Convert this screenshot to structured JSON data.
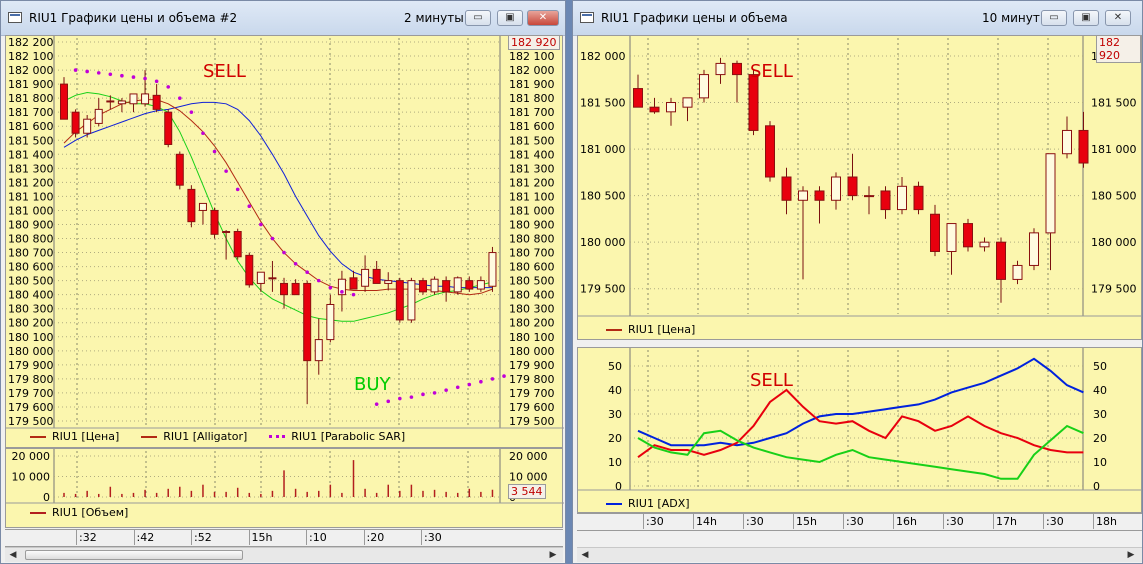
{
  "colors": {
    "pane_bg": "#fbf6ae",
    "bull": "#fffbe0",
    "bear": "#e8000e",
    "sma_red": "#b22a14",
    "sma_green": "#18d018",
    "sma_blue": "#1020d8",
    "sar": "#c000d8",
    "sell": "#d00000",
    "buy": "#00cc00",
    "volume": "#b21e1e",
    "adx": "#0022dd"
  },
  "left": {
    "title": "RIU1 Графики цены и объема #2",
    "period": "2 минуты",
    "buttons": {
      "minimize": "▭",
      "maximize": "▣",
      "close": "✕"
    },
    "price_axis_labels": [
      "182 200",
      "182 100",
      "182 000",
      "181 900",
      "181 800",
      "181 700",
      "181 600",
      "181 500",
      "181 400",
      "181 300",
      "181 200",
      "181 100",
      "181 000",
      "180 900",
      "180 800",
      "180 700",
      "180 600",
      "180 500",
      "180 400",
      "180 300",
      "180 200",
      "180 100",
      "180 000",
      "179 900",
      "179 800",
      "179 700",
      "179 600",
      "179 500"
    ],
    "last_price": "182 920",
    "sell_label": "SELL",
    "buy_label": "BUY",
    "legend": [
      "RIU1 [Цена]",
      "RIU1 [Alligator]",
      "RIU1 [Parabolic SAR]"
    ],
    "volume_axis_labels": [
      "20 000",
      "10 000",
      "0"
    ],
    "volume_last": "3 544",
    "volume_legend": "RIU1 [Объем]",
    "time_labels": [
      ":32",
      ":42",
      ":52",
      "15h",
      ":10",
      ":20",
      ":30"
    ],
    "chart_data": {
      "type": "candlestick",
      "ylim": [
        179500,
        182200
      ],
      "candles": [
        {
          "o": 181900,
          "h": 181950,
          "l": 181650,
          "c": 181650
        },
        {
          "o": 181700,
          "h": 181720,
          "l": 181520,
          "c": 181550
        },
        {
          "o": 181550,
          "h": 181680,
          "l": 181520,
          "c": 181650
        },
        {
          "o": 181620,
          "h": 181800,
          "l": 181600,
          "c": 181720
        },
        {
          "o": 181780,
          "h": 181820,
          "l": 181720,
          "c": 181780
        },
        {
          "o": 181760,
          "h": 181800,
          "l": 181700,
          "c": 181780
        },
        {
          "o": 181760,
          "h": 181800,
          "l": 181700,
          "c": 181830
        },
        {
          "o": 181760,
          "h": 182000,
          "l": 181740,
          "c": 181830
        },
        {
          "o": 181820,
          "h": 181900,
          "l": 181700,
          "c": 181720
        },
        {
          "o": 181700,
          "h": 181720,
          "l": 181450,
          "c": 181470
        },
        {
          "o": 181400,
          "h": 181420,
          "l": 181150,
          "c": 181180
        },
        {
          "o": 181150,
          "h": 181180,
          "l": 180880,
          "c": 180920
        },
        {
          "o": 181000,
          "h": 181050,
          "l": 180900,
          "c": 181050
        },
        {
          "o": 181000,
          "h": 181020,
          "l": 180800,
          "c": 180830
        },
        {
          "o": 180850,
          "h": 180860,
          "l": 180650,
          "c": 180850
        },
        {
          "o": 180850,
          "h": 180870,
          "l": 180650,
          "c": 180670
        },
        {
          "o": 180680,
          "h": 180700,
          "l": 180450,
          "c": 180470
        },
        {
          "o": 180480,
          "h": 180560,
          "l": 180420,
          "c": 180560
        },
        {
          "o": 180520,
          "h": 180640,
          "l": 180420,
          "c": 180520
        },
        {
          "o": 180480,
          "h": 180520,
          "l": 180300,
          "c": 180400
        },
        {
          "o": 180480,
          "h": 180510,
          "l": 180440,
          "c": 180400
        },
        {
          "o": 180480,
          "h": 180500,
          "l": 179620,
          "c": 179930
        },
        {
          "o": 179930,
          "h": 180230,
          "l": 179830,
          "c": 180080
        },
        {
          "o": 180080,
          "h": 180400,
          "l": 180060,
          "c": 180330
        },
        {
          "o": 180400,
          "h": 180570,
          "l": 180280,
          "c": 180510
        },
        {
          "o": 180520,
          "h": 180570,
          "l": 180440,
          "c": 180440
        },
        {
          "o": 180460,
          "h": 180680,
          "l": 180420,
          "c": 180580
        },
        {
          "o": 180580,
          "h": 180640,
          "l": 180480,
          "c": 180480
        },
        {
          "o": 180480,
          "h": 180560,
          "l": 180430,
          "c": 180500
        },
        {
          "o": 180500,
          "h": 180520,
          "l": 180200,
          "c": 180220
        },
        {
          "o": 180220,
          "h": 180520,
          "l": 180200,
          "c": 180500
        },
        {
          "o": 180500,
          "h": 180520,
          "l": 180400,
          "c": 180420
        },
        {
          "o": 180420,
          "h": 180530,
          "l": 180400,
          "c": 180510
        },
        {
          "o": 180500,
          "h": 180530,
          "l": 180350,
          "c": 180420
        },
        {
          "o": 180420,
          "h": 180530,
          "l": 180400,
          "c": 180520
        },
        {
          "o": 180500,
          "h": 180530,
          "l": 180420,
          "c": 180440
        },
        {
          "o": 180440,
          "h": 180530,
          "l": 180420,
          "c": 180500
        },
        {
          "o": 180460,
          "h": 180740,
          "l": 180420,
          "c": 180700
        }
      ],
      "alligator_red": [
        181480,
        181560,
        181620,
        181680,
        181720,
        181760,
        181780,
        181790,
        181790,
        181760,
        181710,
        181640,
        181560,
        181460,
        181340,
        181200,
        181060,
        180920,
        180800,
        180700,
        180620,
        180560,
        180500,
        180460,
        180440,
        180430,
        180430,
        180430,
        180440,
        180440,
        180440,
        180440,
        180430,
        180420,
        180410,
        180400,
        180410,
        180440
      ],
      "alligator_green": [
        181780,
        181820,
        181840,
        181830,
        181810,
        181780,
        181760,
        181760,
        181740,
        181700,
        181560,
        181380,
        181180,
        180980,
        180800,
        180640,
        180520,
        180430,
        180370,
        180330,
        180290,
        180250,
        180230,
        180220,
        180210,
        180210,
        180230,
        180250,
        180270,
        180300,
        180330,
        180370,
        180400,
        180420,
        180430,
        180450,
        180470,
        180490
      ],
      "alligator_blue": [
        181450,
        181500,
        181540,
        181570,
        181600,
        181630,
        181660,
        181690,
        181710,
        181720,
        181740,
        181760,
        181770,
        181770,
        181760,
        181720,
        181640,
        181530,
        181400,
        181260,
        181100,
        180960,
        180820,
        180710,
        180620,
        180560,
        180530,
        180510,
        180500,
        180490,
        180480,
        180470,
        180460,
        180460,
        180450,
        180450,
        180450,
        180450
      ],
      "sar": [
        [
          1,
          182000
        ],
        [
          2,
          181990
        ],
        [
          3,
          181980
        ],
        [
          4,
          181970
        ],
        [
          5,
          181960
        ],
        [
          6,
          181950
        ],
        [
          7,
          181940
        ],
        [
          8,
          181920
        ],
        [
          9,
          181880
        ],
        [
          10,
          181800
        ],
        [
          11,
          181700
        ],
        [
          12,
          181550
        ],
        [
          13,
          181420
        ],
        [
          14,
          181280
        ],
        [
          15,
          181150
        ],
        [
          16,
          181030
        ],
        [
          17,
          180900
        ],
        [
          18,
          180800
        ],
        [
          19,
          180700
        ],
        [
          20,
          180620
        ],
        [
          21,
          180560
        ],
        [
          22,
          180500
        ],
        [
          23,
          180450
        ],
        [
          24,
          180420
        ],
        [
          25,
          180400
        ],
        [
          27,
          179620
        ],
        [
          28,
          179640
        ],
        [
          29,
          179660
        ],
        [
          30,
          179670
        ],
        [
          31,
          179690
        ],
        [
          32,
          179700
        ],
        [
          33,
          179720
        ],
        [
          34,
          179740
        ],
        [
          35,
          179760
        ],
        [
          36,
          179780
        ],
        [
          37,
          179800
        ],
        [
          38,
          179820
        ]
      ],
      "volume": [
        2000,
        1500,
        3000,
        1500,
        5000,
        1500,
        2000,
        3500,
        2000,
        4000,
        5000,
        3000,
        6000,
        2500,
        2500,
        4500,
        2000,
        1500,
        3000,
        13000,
        4000,
        2500,
        3000,
        6000,
        2000,
        18000,
        4000,
        2000,
        6000,
        3000,
        6000,
        3000,
        3500,
        2500,
        2000,
        4000,
        2500,
        3544
      ],
      "volume_ylim": [
        0,
        20000
      ]
    }
  },
  "right": {
    "title": "RIU1 Графики цены и объема",
    "period": "10 минут",
    "buttons": {
      "minimize": "▭",
      "maximize": "▣",
      "close": "✕"
    },
    "price_axis_labels": [
      "182 000",
      "181 500",
      "181 000",
      "180 500",
      "180 000",
      "179 500"
    ],
    "last_price": "182 920",
    "sell_label": "SELL",
    "legend": "RIU1 [Цена]",
    "adx_axis_labels": [
      "50",
      "40",
      "30",
      "20",
      "10",
      "0"
    ],
    "adx_legend": "RIU1 [ADX]",
    "time_labels": [
      ":30",
      "14h",
      ":30",
      "15h",
      ":30",
      "16h",
      ":30",
      "17h",
      ":30",
      "18h"
    ],
    "chart_data": [
      {
        "type": "candlestick",
        "ylim": [
          179250,
          182150
        ],
        "candles": [
          {
            "o": 181650,
            "h": 181800,
            "l": 181450,
            "c": 181450
          },
          {
            "o": 181450,
            "h": 181550,
            "l": 181380,
            "c": 181400
          },
          {
            "o": 181400,
            "h": 181550,
            "l": 181250,
            "c": 181500
          },
          {
            "o": 181450,
            "h": 181550,
            "l": 181300,
            "c": 181550
          },
          {
            "o": 181550,
            "h": 181850,
            "l": 181500,
            "c": 181800
          },
          {
            "o": 181800,
            "h": 181980,
            "l": 181700,
            "c": 181920
          },
          {
            "o": 181920,
            "h": 181950,
            "l": 181500,
            "c": 181800
          },
          {
            "o": 181800,
            "h": 181850,
            "l": 181150,
            "c": 181200
          },
          {
            "o": 181250,
            "h": 181300,
            "l": 180650,
            "c": 180700
          },
          {
            "o": 180700,
            "h": 180800,
            "l": 180300,
            "c": 180450
          },
          {
            "o": 180450,
            "h": 180600,
            "l": 179600,
            "c": 180550
          },
          {
            "o": 180550,
            "h": 180600,
            "l": 180200,
            "c": 180450
          },
          {
            "o": 180450,
            "h": 180750,
            "l": 180350,
            "c": 180700
          },
          {
            "o": 180700,
            "h": 180950,
            "l": 180450,
            "c": 180500
          },
          {
            "o": 180500,
            "h": 180600,
            "l": 180300,
            "c": 180500
          },
          {
            "o": 180550,
            "h": 180600,
            "l": 180250,
            "c": 180350
          },
          {
            "o": 180350,
            "h": 180700,
            "l": 180300,
            "c": 180600
          },
          {
            "o": 180600,
            "h": 180650,
            "l": 180300,
            "c": 180350
          },
          {
            "o": 180300,
            "h": 180400,
            "l": 179850,
            "c": 179900
          },
          {
            "o": 179900,
            "h": 180200,
            "l": 179650,
            "c": 180200
          },
          {
            "o": 180200,
            "h": 180250,
            "l": 179900,
            "c": 179950
          },
          {
            "o": 179950,
            "h": 180050,
            "l": 179900,
            "c": 180000
          },
          {
            "o": 180000,
            "h": 180050,
            "l": 179350,
            "c": 179600
          },
          {
            "o": 179600,
            "h": 179800,
            "l": 179550,
            "c": 179750
          },
          {
            "o": 179750,
            "h": 180150,
            "l": 179700,
            "c": 180100
          },
          {
            "o": 180100,
            "h": 180950,
            "l": 179700,
            "c": 180950
          },
          {
            "o": 180950,
            "h": 181350,
            "l": 180900,
            "c": 181200
          },
          {
            "o": 181200,
            "h": 181400,
            "l": 180800,
            "c": 180850
          }
        ]
      },
      {
        "type": "line",
        "ylim": [
          0,
          55
        ],
        "series": [
          {
            "values": [
              23,
              20,
              17,
              17,
              17,
              18,
              17,
              18,
              20,
              22,
              26,
              29,
              30,
              30,
              31,
              32,
              33,
              34,
              36,
              39,
              41,
              43,
              46,
              49,
              53,
              48,
              42,
              39
            ]
          },
          {
            "values": [
              12,
              17,
              15,
              15,
              13,
              15,
              18,
              25,
              35,
              40,
              33,
              27,
              26,
              27,
              23,
              20,
              29,
              27,
              23,
              25,
              29,
              25,
              22,
              20,
              17,
              15,
              14,
              14
            ]
          },
          {
            "values": [
              20,
              16,
              14,
              13,
              22,
              23,
              19,
              16,
              14,
              12,
              11,
              10,
              13,
              15,
              12,
              11,
              10,
              9,
              8,
              7,
              6,
              5,
              3,
              3,
              13,
              19,
              25,
              22
            ]
          }
        ]
      }
    ]
  }
}
